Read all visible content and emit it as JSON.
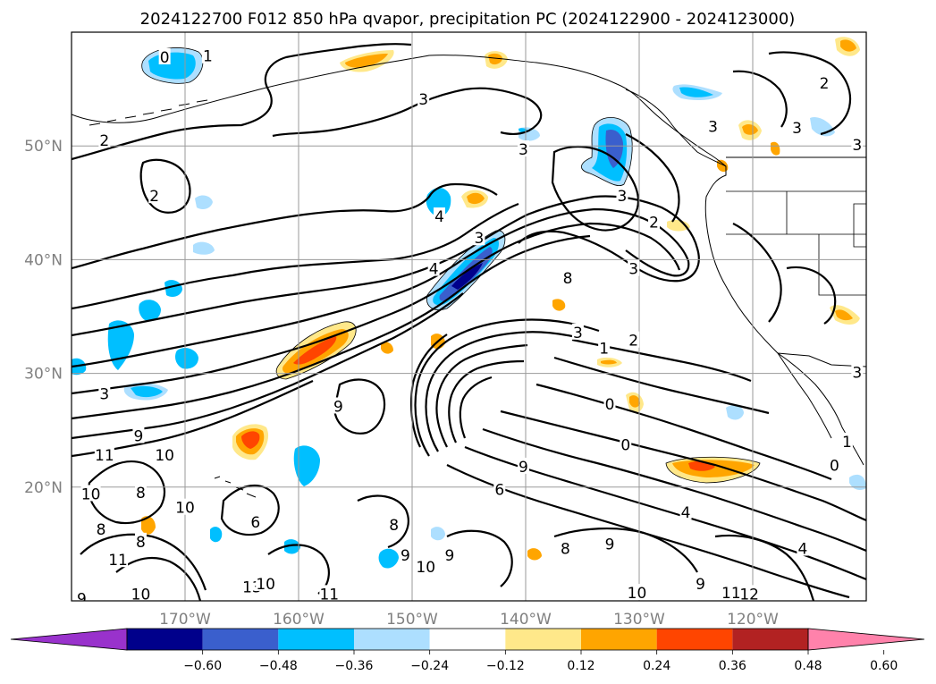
{
  "chart_data": {
    "type": "contour_map",
    "title": "2024122700 F012 850 hPa qvapor, precipitation PC (2024122900 - 2024123000)",
    "xlim": [
      -180,
      -110
    ],
    "ylim": [
      10,
      60
    ],
    "x_ticks": [
      {
        "lon": -170,
        "label": "170°W"
      },
      {
        "lon": -160,
        "label": "160°W"
      },
      {
        "lon": -150,
        "label": "150°W"
      },
      {
        "lon": -140,
        "label": "140°W"
      },
      {
        "lon": -130,
        "label": "130°W"
      },
      {
        "lon": -120,
        "label": "120°W"
      }
    ],
    "y_ticks": [
      {
        "lat": 20,
        "label": "20°N"
      },
      {
        "lat": 30,
        "label": "30°N"
      },
      {
        "lat": 40,
        "label": "40°N"
      },
      {
        "lat": 50,
        "label": "50°N"
      }
    ],
    "grid": true,
    "colorbar": {
      "orientation": "horizontal",
      "position": "bottom",
      "extend": "both",
      "levels": [
        -0.6,
        -0.48,
        -0.36,
        -0.24,
        -0.12,
        0.12,
        0.24,
        0.36,
        0.48,
        0.6
      ],
      "tick_labels": [
        "−0.60",
        "−0.48",
        "−0.36",
        "−0.24",
        "−0.12",
        "0.12",
        "0.24",
        "0.36",
        "0.48",
        "0.60"
      ],
      "colors": [
        "#9932CC",
        "#00008B",
        "#3A5FCD",
        "#00BFFF",
        "#ADDFFF",
        "#FFFFFF",
        "#FFE88A",
        "#FFA500",
        "#FF4500",
        "#B22222",
        "#FF82AB"
      ]
    },
    "contour_labels": [
      {
        "text": "0",
        "lon": -171.8,
        "lat": 57.8
      },
      {
        "text": "1",
        "lon": -168,
        "lat": 57.9
      },
      {
        "text": "3",
        "lon": -149,
        "lat": 54.1
      },
      {
        "text": "2",
        "lon": -177.1,
        "lat": 50.5
      },
      {
        "text": "2",
        "lon": -172.7,
        "lat": 45.6
      },
      {
        "text": "4",
        "lon": -147.6,
        "lat": 43.8
      },
      {
        "text": "4",
        "lon": -148.1,
        "lat": 39.2
      },
      {
        "text": "3",
        "lon": -144.1,
        "lat": 41.9
      },
      {
        "text": "3",
        "lon": -140.2,
        "lat": 49.7
      },
      {
        "text": "3",
        "lon": -131.5,
        "lat": 45.6
      },
      {
        "text": "2",
        "lon": -128.7,
        "lat": 43.3
      },
      {
        "text": "3",
        "lon": -130.5,
        "lat": 39.2
      },
      {
        "text": "3",
        "lon": -123.5,
        "lat": 51.7
      },
      {
        "text": "3",
        "lon": -116.1,
        "lat": 51.6
      },
      {
        "text": "3",
        "lon": -110.8,
        "lat": 50.1
      },
      {
        "text": "2",
        "lon": -113.7,
        "lat": 55.5
      },
      {
        "text": "3",
        "lon": -110.8,
        "lat": 30.1
      },
      {
        "text": "8",
        "lon": -136.3,
        "lat": 38.4
      },
      {
        "text": "3",
        "lon": -135.4,
        "lat": 33.6
      },
      {
        "text": "1",
        "lon": -133.1,
        "lat": 32.2
      },
      {
        "text": "2",
        "lon": -130.5,
        "lat": 32.9
      },
      {
        "text": "0",
        "lon": -132.6,
        "lat": 27.3
      },
      {
        "text": "0",
        "lon": -131.2,
        "lat": 23.7
      },
      {
        "text": "3",
        "lon": -177.1,
        "lat": 28.2
      },
      {
        "text": "9",
        "lon": -174.1,
        "lat": 24.5
      },
      {
        "text": "11",
        "lon": -177.1,
        "lat": 22.8
      },
      {
        "text": "10",
        "lon": -171.8,
        "lat": 22.8
      },
      {
        "text": "10",
        "lon": -178.3,
        "lat": 19.4
      },
      {
        "text": "8",
        "lon": -173.9,
        "lat": 19.5
      },
      {
        "text": "10",
        "lon": -170,
        "lat": 18.2
      },
      {
        "text": "8",
        "lon": -177.4,
        "lat": 16.3
      },
      {
        "text": "8",
        "lon": -173.9,
        "lat": 15.2
      },
      {
        "text": "11",
        "lon": -175.9,
        "lat": 13.6
      },
      {
        "text": "10",
        "lon": -173.9,
        "lat": 10.6
      },
      {
        "text": "9",
        "lon": -179.1,
        "lat": 10.2
      },
      {
        "text": "13",
        "lon": -164.1,
        "lat": 11.2
      },
      {
        "text": "11",
        "lon": -157.3,
        "lat": 10.6
      },
      {
        "text": "10",
        "lon": -148.8,
        "lat": 13.0
      },
      {
        "text": "9",
        "lon": -146.7,
        "lat": 14.0
      },
      {
        "text": "9",
        "lon": -150.6,
        "lat": 14.0
      },
      {
        "text": "8",
        "lon": -151.6,
        "lat": 16.7
      },
      {
        "text": "10",
        "lon": -162.9,
        "lat": 11.5
      },
      {
        "text": "9",
        "lon": -156.5,
        "lat": 27.1
      },
      {
        "text": "6",
        "lon": -163.8,
        "lat": 16.9
      },
      {
        "text": "6",
        "lon": -142.3,
        "lat": 19.8
      },
      {
        "text": "9",
        "lon": -140.2,
        "lat": 21.8
      },
      {
        "text": "8",
        "lon": -136.5,
        "lat": 14.6
      },
      {
        "text": "9",
        "lon": -132.6,
        "lat": 15.0
      },
      {
        "text": "4",
        "lon": -125.9,
        "lat": 17.8
      },
      {
        "text": "9",
        "lon": -124.6,
        "lat": 11.5
      },
      {
        "text": "10",
        "lon": -130.2,
        "lat": 10.7
      },
      {
        "text": "11",
        "lon": -121.9,
        "lat": 10.7
      },
      {
        "text": "12",
        "lon": -120.3,
        "lat": 10.6
      },
      {
        "text": "1",
        "lon": -111.7,
        "lat": 24.0
      },
      {
        "text": "0",
        "lon": -112.8,
        "lat": 21.9
      },
      {
        "text": "4",
        "lon": -115.6,
        "lat": 14.6
      }
    ]
  }
}
